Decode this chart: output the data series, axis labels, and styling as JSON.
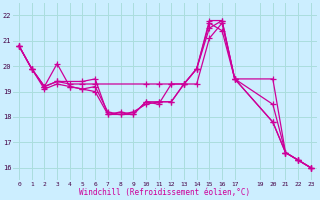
{
  "background_color": "#cceeff",
  "grid_color": "#aadddd",
  "line_color": "#cc0099",
  "xlabel": "Windchill (Refroidissement éolien,°C)",
  "xlim": [
    -0.5,
    23.5
  ],
  "ylim": [
    15.5,
    22.5
  ],
  "yticks": [
    16,
    17,
    18,
    19,
    20,
    21,
    22
  ],
  "xticks": [
    0,
    1,
    2,
    3,
    4,
    5,
    6,
    7,
    8,
    9,
    10,
    11,
    12,
    13,
    14,
    15,
    16,
    17,
    19,
    20,
    21,
    22,
    23
  ],
  "series": [
    {
      "x": [
        0,
        1,
        2,
        3,
        4,
        5,
        6,
        7,
        8,
        9,
        10,
        11,
        12,
        13,
        14,
        15,
        16,
        17,
        20,
        21,
        22,
        23
      ],
      "y": [
        20.8,
        19.9,
        19.1,
        19.3,
        19.2,
        19.1,
        19.0,
        18.1,
        18.1,
        18.2,
        18.5,
        18.6,
        18.6,
        19.3,
        19.9,
        21.7,
        21.4,
        19.5,
        17.8,
        16.6,
        16.3,
        16.0
      ]
    },
    {
      "x": [
        0,
        1,
        2,
        3,
        4,
        5,
        6,
        7,
        8,
        9,
        10,
        11,
        12,
        13,
        14,
        15,
        16,
        17,
        20,
        21,
        22,
        23
      ],
      "y": [
        20.8,
        19.9,
        19.2,
        20.1,
        19.2,
        19.1,
        19.2,
        18.2,
        18.1,
        18.1,
        18.6,
        18.6,
        18.6,
        19.3,
        19.3,
        21.1,
        21.7,
        19.5,
        17.8,
        16.6,
        16.3,
        16.0
      ]
    },
    {
      "x": [
        0,
        1,
        2,
        3,
        5,
        6,
        7,
        8,
        9,
        10,
        11,
        12,
        13,
        14,
        15,
        16,
        17,
        20,
        21,
        22,
        23
      ],
      "y": [
        20.8,
        19.9,
        19.2,
        19.4,
        19.4,
        19.5,
        18.1,
        18.2,
        18.1,
        18.6,
        18.5,
        19.3,
        19.3,
        19.9,
        21.5,
        21.8,
        19.5,
        18.5,
        16.6,
        16.3,
        16.0
      ]
    },
    {
      "x": [
        0,
        1,
        2,
        3,
        4,
        5,
        6,
        10,
        11,
        12,
        13,
        14,
        15,
        16,
        17,
        20,
        21,
        22,
        23
      ],
      "y": [
        20.8,
        19.9,
        19.2,
        19.4,
        19.3,
        19.3,
        19.3,
        19.3,
        19.3,
        19.3,
        19.3,
        19.9,
        21.8,
        21.8,
        19.5,
        19.5,
        16.6,
        16.3,
        16.0
      ]
    }
  ]
}
